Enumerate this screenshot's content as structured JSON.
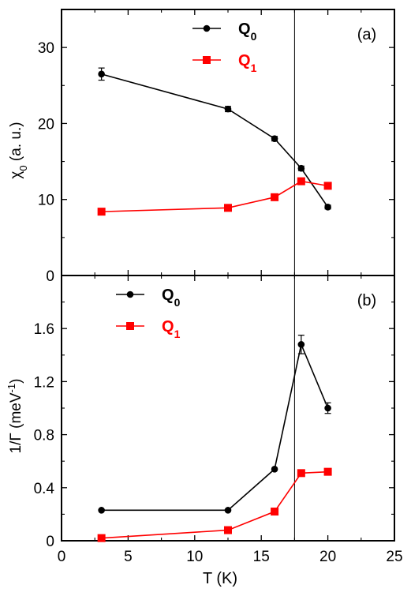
{
  "chart_data": [
    {
      "type": "line",
      "panel_label": "(a)",
      "xlabel": "",
      "ylabel": {
        "main": "χ",
        "sub": "0",
        "rest": " (a. u.)"
      },
      "xlim": [
        0,
        25
      ],
      "ylim": [
        0,
        35
      ],
      "xticks": [
        0,
        5,
        10,
        15,
        20,
        25
      ],
      "yticks": [
        0,
        10,
        20,
        30
      ],
      "show_xtick_labels": false,
      "vline_x": 17.5,
      "legend_position": "top-center",
      "series": [
        {
          "name": "Q",
          "sub": "0",
          "color": "#000000",
          "marker": "circle",
          "x": [
            3,
            12.5,
            16,
            18,
            20
          ],
          "y": [
            26.5,
            21.9,
            18.0,
            14.1,
            9.0
          ],
          "err": [
            0.8,
            0.35,
            0.3,
            0.3,
            0.25
          ]
        },
        {
          "name": "Q",
          "sub": "1",
          "color": "#ff0000",
          "marker": "square",
          "x": [
            3,
            12.5,
            16,
            18,
            20
          ],
          "y": [
            8.4,
            8.9,
            10.3,
            12.4,
            11.8
          ],
          "err": [
            0,
            0,
            0,
            0,
            0
          ]
        }
      ]
    },
    {
      "type": "line",
      "panel_label": "(b)",
      "xlabel": "T (K)",
      "ylabel": {
        "main": "1/Γ (meV",
        "sup": "-1",
        "rest": ")"
      },
      "xlim": [
        0,
        25
      ],
      "ylim": [
        0,
        2.0
      ],
      "xticks": [
        0,
        5,
        10,
        15,
        20,
        25
      ],
      "yticks": [
        0,
        0.4,
        0.8,
        1.2,
        1.6
      ],
      "ytick_labels": [
        "0",
        "0.4",
        "0.8",
        "1.2",
        "1.6"
      ],
      "show_xtick_labels": true,
      "vline_x": 17.5,
      "legend_position": "top-left",
      "series": [
        {
          "name": "Q",
          "sub": "0",
          "color": "#000000",
          "marker": "circle",
          "x": [
            3,
            12.5,
            16,
            18,
            20
          ],
          "y": [
            0.23,
            0.23,
            0.54,
            1.48,
            1.0
          ],
          "err": [
            0,
            0,
            0,
            0.07,
            0.04
          ]
        },
        {
          "name": "Q",
          "sub": "1",
          "color": "#ff0000",
          "marker": "square",
          "x": [
            3,
            12.5,
            16,
            18,
            20
          ],
          "y": [
            0.02,
            0.08,
            0.22,
            0.51,
            0.52
          ],
          "err": [
            0,
            0,
            0,
            0,
            0
          ]
        }
      ]
    }
  ]
}
